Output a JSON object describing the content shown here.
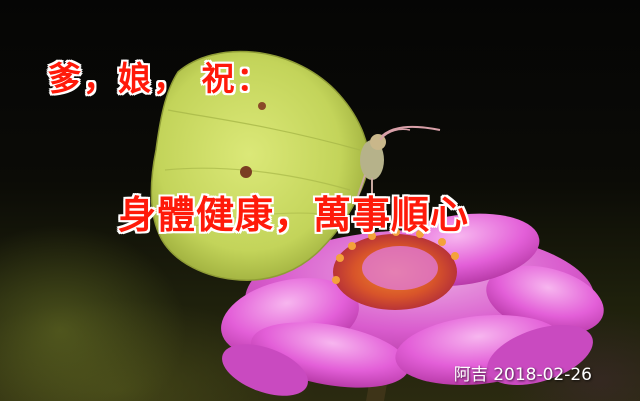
{
  "card": {
    "greeting": "爹，娘，  祝：",
    "wish": "身體健康，萬事順心",
    "signature": "阿吉 2018-02-26"
  },
  "colors": {
    "text_red": "#ff1a0a",
    "text_outline": "#ffffff",
    "signature": "#ffffff",
    "butterfly_wing": "#cfe06a",
    "flower_petal": "#e05bd6"
  }
}
